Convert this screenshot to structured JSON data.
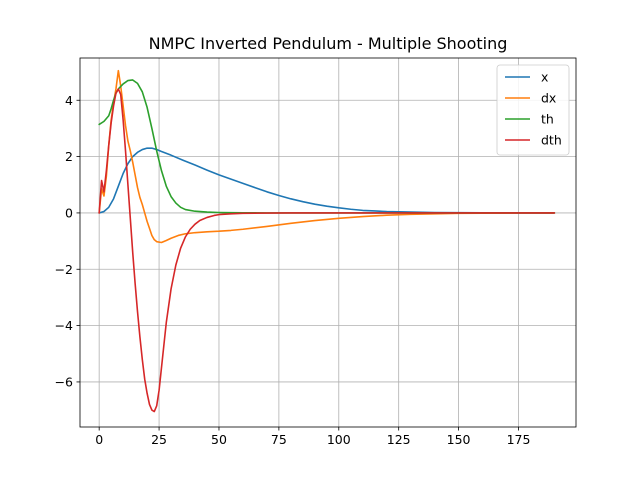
{
  "chart_data": {
    "type": "line",
    "title": "NMPC Inverted Pendulum - Multiple Shooting",
    "xlabel": "",
    "ylabel": "",
    "xlim": [
      -8,
      199
    ],
    "ylim": [
      -7.6,
      5.5
    ],
    "x_ticks": [
      0,
      25,
      50,
      75,
      100,
      125,
      150,
      175
    ],
    "y_ticks": [
      -6,
      -4,
      -2,
      0,
      2,
      4
    ],
    "y_tick_labels": [
      "−6",
      "−4",
      "−2",
      "0",
      "2",
      "4"
    ],
    "grid": true,
    "legend_position": "top-right",
    "series": [
      {
        "name": "x",
        "color": "#1f77b4",
        "points": [
          [
            0,
            0
          ],
          [
            2,
            0.05
          ],
          [
            4,
            0.2
          ],
          [
            6,
            0.5
          ],
          [
            8,
            0.95
          ],
          [
            10,
            1.4
          ],
          [
            12,
            1.75
          ],
          [
            14,
            2.0
          ],
          [
            16,
            2.15
          ],
          [
            18,
            2.25
          ],
          [
            20,
            2.3
          ],
          [
            22,
            2.3
          ],
          [
            24,
            2.25
          ],
          [
            26,
            2.18
          ],
          [
            30,
            2.05
          ],
          [
            35,
            1.87
          ],
          [
            40,
            1.7
          ],
          [
            45,
            1.52
          ],
          [
            50,
            1.35
          ],
          [
            55,
            1.2
          ],
          [
            60,
            1.05
          ],
          [
            65,
            0.9
          ],
          [
            70,
            0.75
          ],
          [
            75,
            0.62
          ],
          [
            80,
            0.5
          ],
          [
            85,
            0.4
          ],
          [
            90,
            0.31
          ],
          [
            95,
            0.24
          ],
          [
            100,
            0.18
          ],
          [
            105,
            0.13
          ],
          [
            110,
            0.09
          ],
          [
            115,
            0.07
          ],
          [
            120,
            0.05
          ],
          [
            125,
            0.04
          ],
          [
            130,
            0.03
          ],
          [
            140,
            0.015
          ],
          [
            150,
            0.008
          ],
          [
            160,
            0.004
          ],
          [
            175,
            0.001
          ],
          [
            190,
            0
          ]
        ]
      },
      {
        "name": "dx",
        "color": "#ff7f0e",
        "points": [
          [
            0,
            0
          ],
          [
            1,
            0.85
          ],
          [
            2,
            0.6
          ],
          [
            3,
            1.3
          ],
          [
            4,
            2.4
          ],
          [
            5,
            3.3
          ],
          [
            6,
            3.9
          ],
          [
            7,
            4.4
          ],
          [
            8,
            5.05
          ],
          [
            9,
            4.5
          ],
          [
            10,
            3.8
          ],
          [
            11,
            3.1
          ],
          [
            12,
            2.55
          ],
          [
            13,
            2.2
          ],
          [
            14,
            1.8
          ],
          [
            15,
            1.35
          ],
          [
            16,
            0.9
          ],
          [
            17,
            0.55
          ],
          [
            18,
            0.3
          ],
          [
            19,
            0.0
          ],
          [
            20,
            -0.3
          ],
          [
            21,
            -0.55
          ],
          [
            22,
            -0.8
          ],
          [
            23,
            -0.95
          ],
          [
            24,
            -1.02
          ],
          [
            26,
            -1.05
          ],
          [
            28,
            -0.98
          ],
          [
            30,
            -0.9
          ],
          [
            33,
            -0.8
          ],
          [
            36,
            -0.74
          ],
          [
            40,
            -0.7
          ],
          [
            45,
            -0.67
          ],
          [
            50,
            -0.65
          ],
          [
            55,
            -0.62
          ],
          [
            60,
            -0.58
          ],
          [
            70,
            -0.48
          ],
          [
            80,
            -0.37
          ],
          [
            90,
            -0.27
          ],
          [
            100,
            -0.19
          ],
          [
            110,
            -0.13
          ],
          [
            120,
            -0.08
          ],
          [
            130,
            -0.05
          ],
          [
            140,
            -0.03
          ],
          [
            150,
            -0.015
          ],
          [
            160,
            -0.008
          ],
          [
            175,
            -0.003
          ],
          [
            190,
            0
          ]
        ]
      },
      {
        "name": "th",
        "color": "#2ca02c",
        "points": [
          [
            0,
            3.14
          ],
          [
            2,
            3.25
          ],
          [
            4,
            3.45
          ],
          [
            5,
            3.7
          ],
          [
            6,
            4.0
          ],
          [
            7,
            4.25
          ],
          [
            8,
            4.4
          ],
          [
            10,
            4.58
          ],
          [
            12,
            4.7
          ],
          [
            14,
            4.72
          ],
          [
            16,
            4.6
          ],
          [
            18,
            4.3
          ],
          [
            20,
            3.75
          ],
          [
            22,
            3.0
          ],
          [
            24,
            2.2
          ],
          [
            26,
            1.5
          ],
          [
            28,
            0.95
          ],
          [
            30,
            0.58
          ],
          [
            32,
            0.35
          ],
          [
            34,
            0.2
          ],
          [
            36,
            0.12
          ],
          [
            40,
            0.06
          ],
          [
            45,
            0.03
          ],
          [
            50,
            0.015
          ],
          [
            55,
            0.008
          ],
          [
            60,
            0.004
          ],
          [
            70,
            0.001
          ],
          [
            90,
            0
          ],
          [
            190,
            0
          ]
        ]
      },
      {
        "name": "dth",
        "color": "#d62728",
        "points": [
          [
            0,
            0
          ],
          [
            1,
            1.15
          ],
          [
            2,
            0.75
          ],
          [
            3,
            1.5
          ],
          [
            4,
            2.4
          ],
          [
            5,
            3.2
          ],
          [
            6,
            3.8
          ],
          [
            7,
            4.25
          ],
          [
            8,
            4.4
          ],
          [
            9,
            4.2
          ],
          [
            10,
            3.3
          ],
          [
            11,
            2.2
          ],
          [
            12,
            1.0
          ],
          [
            13,
            -0.2
          ],
          [
            14,
            -1.4
          ],
          [
            15,
            -2.5
          ],
          [
            16,
            -3.5
          ],
          [
            17,
            -4.4
          ],
          [
            18,
            -5.2
          ],
          [
            19,
            -5.9
          ],
          [
            20,
            -6.4
          ],
          [
            21,
            -6.8
          ],
          [
            22,
            -7.0
          ],
          [
            23,
            -7.05
          ],
          [
            24,
            -6.85
          ],
          [
            25,
            -6.3
          ],
          [
            26,
            -5.5
          ],
          [
            27,
            -4.7
          ],
          [
            28,
            -3.9
          ],
          [
            30,
            -2.7
          ],
          [
            32,
            -1.85
          ],
          [
            34,
            -1.25
          ],
          [
            36,
            -0.85
          ],
          [
            38,
            -0.58
          ],
          [
            40,
            -0.4
          ],
          [
            42,
            -0.27
          ],
          [
            45,
            -0.16
          ],
          [
            48,
            -0.09
          ],
          [
            50,
            -0.06
          ],
          [
            55,
            -0.03
          ],
          [
            60,
            -0.015
          ],
          [
            70,
            -0.005
          ],
          [
            80,
            -0.002
          ],
          [
            100,
            0
          ],
          [
            190,
            0
          ]
        ]
      }
    ]
  }
}
